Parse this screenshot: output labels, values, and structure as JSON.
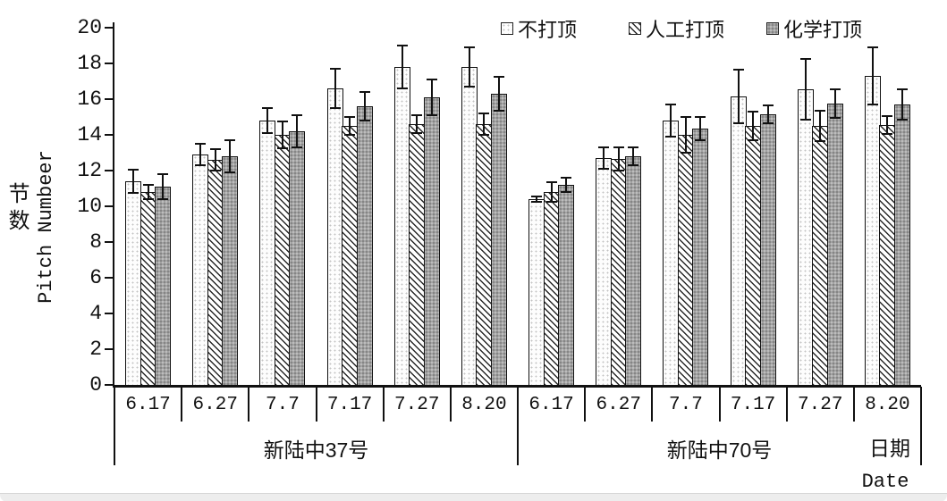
{
  "chart_data": {
    "type": "bar",
    "title": "",
    "legend_position": "top",
    "grid": false,
    "legend": [
      {
        "label": "不打顶",
        "pattern": "dotted-white"
      },
      {
        "label": "人工打顶",
        "pattern": "diagonal-hatch"
      },
      {
        "label": "化学打顶",
        "pattern": "gray-dotted"
      }
    ],
    "y_axis": {
      "label_cn": "节数",
      "label_en": "Pitch Numbeer",
      "min": 0,
      "max": 20,
      "tick_step": 2
    },
    "x_axis": {
      "label_cn": "日期",
      "label_en": "Date"
    },
    "groups": [
      {
        "label": "新陆中37号",
        "categories": [
          "6.17",
          "6.27",
          "7.7",
          "7.17",
          "7.27",
          "8.20"
        ],
        "series": [
          {
            "name": "不打顶",
            "values": [
              11.4,
              12.9,
              14.8,
              16.6,
              17.8,
              17.8
            ],
            "errors": [
              0.65,
              0.6,
              0.7,
              1.1,
              1.2,
              1.1
            ]
          },
          {
            "name": "人工打顶",
            "values": [
              10.8,
              12.6,
              14.0,
              14.5,
              14.6,
              14.6
            ],
            "errors": [
              0.4,
              0.6,
              0.75,
              0.5,
              0.5,
              0.6
            ]
          },
          {
            "name": "化学打顶",
            "values": [
              11.1,
              12.8,
              14.2,
              15.6,
              16.1,
              16.3
            ],
            "errors": [
              0.7,
              0.9,
              0.9,
              0.8,
              1.0,
              0.95
            ]
          }
        ]
      },
      {
        "label": "新陆中70号",
        "categories": [
          "6.17",
          "6.27",
          "7.7",
          "7.17",
          "7.27",
          "8.20"
        ],
        "series": [
          {
            "name": "不打顶",
            "values": [
              10.4,
              12.7,
              14.8,
              16.15,
              16.55,
              17.3
            ],
            "errors": [
              0.15,
              0.6,
              0.9,
              1.5,
              1.7,
              1.6
            ]
          },
          {
            "name": "人工打顶",
            "values": [
              10.8,
              12.65,
              14.0,
              14.5,
              14.5,
              14.55
            ],
            "errors": [
              0.55,
              0.65,
              1.0,
              0.8,
              0.85,
              0.5
            ]
          },
          {
            "name": "化学打顶",
            "values": [
              11.2,
              12.8,
              14.35,
              15.15,
              15.75,
              15.7
            ],
            "errors": [
              0.4,
              0.5,
              0.65,
              0.5,
              0.8,
              0.85
            ]
          }
        ]
      }
    ]
  },
  "colors": {
    "ink": "#111111",
    "gray_fill": "#a2a2a2",
    "page_edge": "#ededed"
  }
}
